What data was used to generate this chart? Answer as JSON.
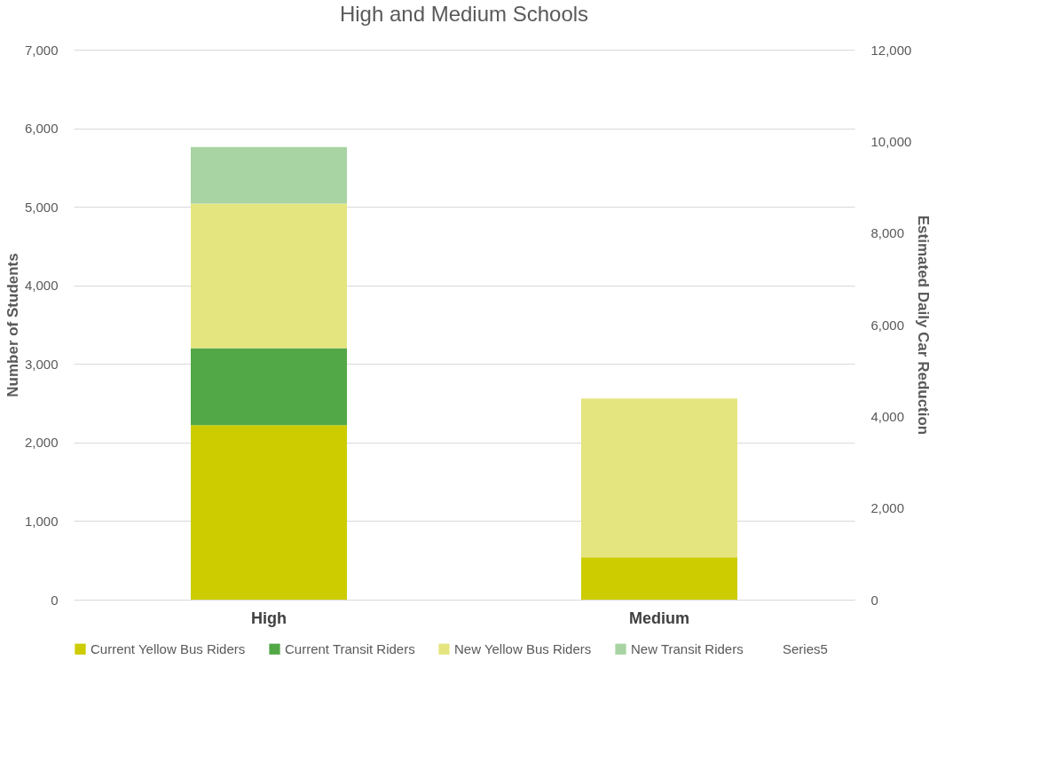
{
  "chart_data": {
    "type": "bar",
    "title": "High and Medium Schools",
    "ylabel": "Number of Students",
    "y2label": "Estimated Daily Car Reduction",
    "categories": [
      "High",
      "Medium"
    ],
    "stacked": true,
    "ylim": [
      0,
      7000
    ],
    "yticks": [
      0,
      {
        "value": 1000,
        "label": "1,000"
      },
      {
        "value": 2000,
        "label": "2,000"
      },
      {
        "value": 3000,
        "label": "3,000"
      },
      {
        "value": 4000,
        "label": "4,000"
      },
      {
        "value": 5000,
        "label": "5,000"
      },
      {
        "value": 6000,
        "label": "6,000"
      },
      {
        "value": 7000,
        "label": "7,000"
      }
    ],
    "y2lim": [
      0,
      12000
    ],
    "y2ticks": [
      0,
      {
        "value": 2000,
        "label": "2,000"
      },
      {
        "value": 4000,
        "label": "4,000"
      },
      {
        "value": 6000,
        "label": "6,000"
      },
      {
        "value": 8000,
        "label": "8,000"
      },
      {
        "value": 10000,
        "label": "10,000"
      },
      {
        "value": 12000,
        "label": "12,000"
      }
    ],
    "grid": "y",
    "legend": "bottom",
    "series": [
      {
        "name": "Current Yellow Bus Riders",
        "color": "#cccc00",
        "values": [
          2220,
          540
        ]
      },
      {
        "name": "Current Transit Riders",
        "color": "#52a846",
        "values": [
          980,
          null
        ]
      },
      {
        "name": "New Yellow Bus Riders",
        "color": "#e5e57f",
        "values": [
          1840,
          2020
        ]
      },
      {
        "name": "New Transit Riders",
        "color": "#a8d3a2",
        "values": [
          720,
          null
        ]
      },
      {
        "name": "Series5",
        "values": [
          null,
          null
        ]
      }
    ]
  }
}
